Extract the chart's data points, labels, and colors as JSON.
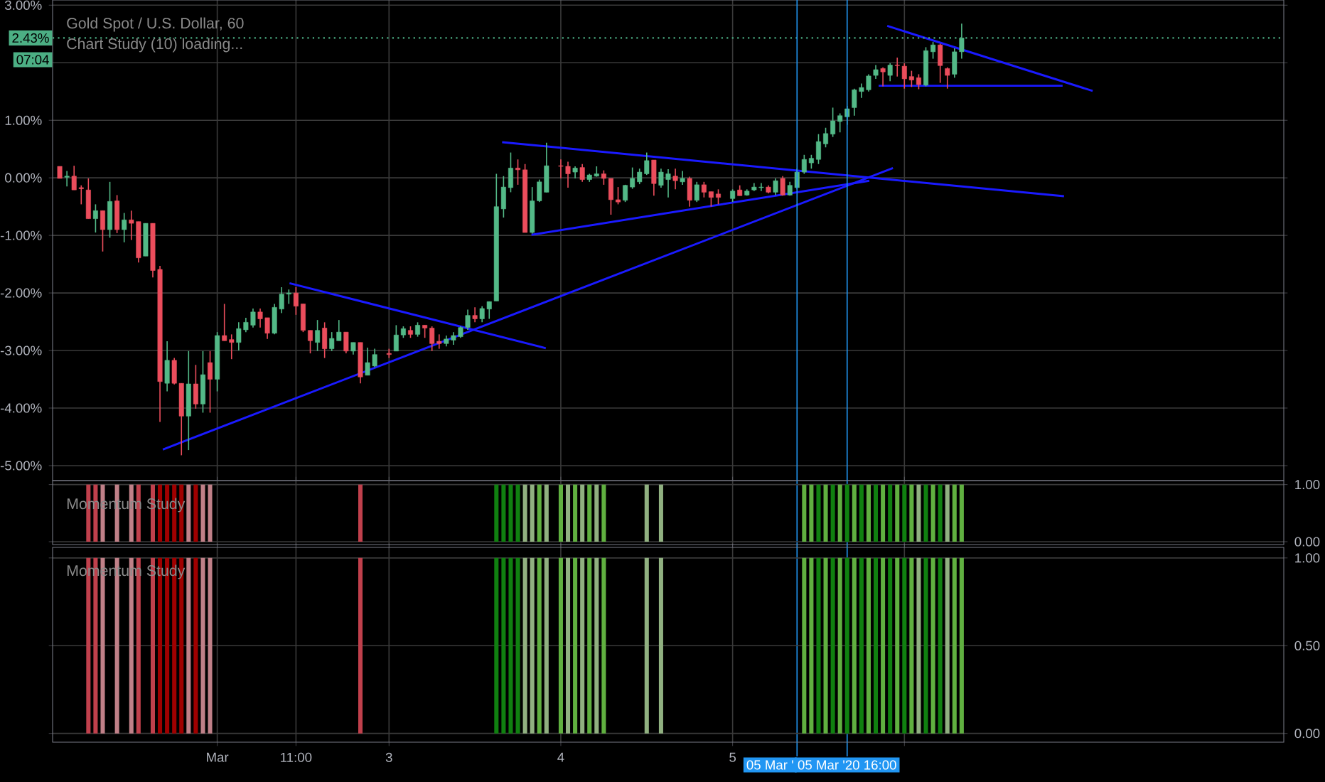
{
  "chart_data": [
    {
      "type": "candlestick",
      "title": "Gold Spot / U.S. Dollar, 60",
      "subtitle": "Chart Study (10) loading...",
      "annotations": [
        "07:04"
      ],
      "x": [
        "2020-03-01T02:00",
        "2020-03-01T03:00",
        "2020-03-01T04:00",
        "2020-03-01T05:00",
        "2020-03-01T06:00",
        "2020-03-01T07:00",
        "2020-03-01T08:00",
        "2020-03-01T09:00",
        "2020-03-01T10:00",
        "2020-03-01T11:00",
        "2020-03-01T12:00",
        "2020-03-01T13:00",
        "2020-03-01T14:00",
        "2020-03-01T15:00",
        "2020-03-01T16:00",
        "2020-03-01T17:00",
        "2020-03-01T18:00",
        "2020-03-01T19:00",
        "2020-03-01T20:00",
        "2020-03-01T21:00",
        "2020-03-01T22:00",
        "2020-03-01T23:00",
        "2020-03-02T00:00",
        "2020-03-02T01:00",
        "2020-03-02T02:00",
        "2020-03-02T03:00",
        "2020-03-02T04:00",
        "2020-03-02T05:00",
        "2020-03-02T06:00",
        "2020-03-02T07:00",
        "2020-03-02T08:00",
        "2020-03-02T09:00",
        "2020-03-02T10:00",
        "2020-03-02T11:00",
        "2020-03-02T12:00",
        "2020-03-02T13:00",
        "2020-03-02T14:00",
        "2020-03-02T15:00",
        "2020-03-02T16:00",
        "2020-03-02T17:00",
        "2020-03-02T18:00",
        "2020-03-02T19:00",
        "2020-03-02T20:00",
        "2020-03-02T21:00",
        "2020-03-02T22:00",
        "2020-03-03T00:00",
        "2020-03-03T01:00",
        "2020-03-03T02:00",
        "2020-03-03T03:00",
        "2020-03-03T04:00",
        "2020-03-03T05:00",
        "2020-03-03T06:00",
        "2020-03-03T07:00",
        "2020-03-03T08:00",
        "2020-03-03T09:00",
        "2020-03-03T10:00",
        "2020-03-03T11:00",
        "2020-03-03T12:00",
        "2020-03-03T13:00",
        "2020-03-03T14:00",
        "2020-03-03T15:00",
        "2020-03-03T16:00",
        "2020-03-03T17:00",
        "2020-03-03T18:00",
        "2020-03-03T19:00",
        "2020-03-03T20:00",
        "2020-03-03T21:00",
        "2020-03-03T22:00",
        "2020-03-04T00:00",
        "2020-03-04T01:00",
        "2020-03-04T02:00",
        "2020-03-04T03:00",
        "2020-03-04T04:00",
        "2020-03-04T05:00",
        "2020-03-04T06:00",
        "2020-03-04T07:00",
        "2020-03-04T08:00",
        "2020-03-04T09:00",
        "2020-03-04T10:00",
        "2020-03-04T11:00",
        "2020-03-04T12:00",
        "2020-03-04T13:00",
        "2020-03-04T14:00",
        "2020-03-04T15:00",
        "2020-03-04T16:00",
        "2020-03-04T17:00",
        "2020-03-04T18:00",
        "2020-03-04T19:00",
        "2020-03-04T20:00",
        "2020-03-04T21:00",
        "2020-03-04T22:00",
        "2020-03-05T00:00",
        "2020-03-05T01:00",
        "2020-03-05T02:00",
        "2020-03-05T03:00",
        "2020-03-05T04:00",
        "2020-03-05T05:00",
        "2020-03-05T06:00",
        "2020-03-05T07:00",
        "2020-03-05T08:00",
        "2020-03-05T09:00",
        "2020-03-05T10:00",
        "2020-03-05T11:00",
        "2020-03-05T12:00",
        "2020-03-05T13:00",
        "2020-03-05T14:00",
        "2020-03-05T15:00",
        "2020-03-05T16:00",
        "2020-03-05T17:00",
        "2020-03-05T18:00",
        "2020-03-05T19:00",
        "2020-03-05T20:00",
        "2020-03-05T21:00",
        "2020-03-05T22:00",
        "2020-03-05T23:00",
        "2020-03-06T00:00",
        "2020-03-06T01:00",
        "2020-03-06T02:00",
        "2020-03-06T03:00",
        "2020-03-06T04:00",
        "2020-03-06T05:00",
        "2020-03-06T06:00",
        "2020-03-06T07:00",
        "2020-03-06T08:00"
      ],
      "ohlc": [
        [
          0.2,
          0.2,
          -0.01,
          -0.01
        ],
        [
          0.01,
          0.12,
          -0.15,
          0.03
        ],
        [
          0.03,
          0.21,
          -0.21,
          -0.21
        ],
        [
          -0.17,
          -0.13,
          -0.46,
          -0.19
        ],
        [
          -0.21,
          -0.01,
          -0.71,
          -0.71
        ],
        [
          -0.71,
          -0.46,
          -0.95,
          -0.57
        ],
        [
          -0.57,
          -0.57,
          -1.28,
          -0.9
        ],
        [
          -0.9,
          -0.07,
          -1.04,
          -0.41
        ],
        [
          -0.4,
          -0.3,
          -0.96,
          -0.9
        ],
        [
          -0.9,
          -0.61,
          -1.12,
          -0.73
        ],
        [
          -0.73,
          -0.57,
          -1.08,
          -0.79
        ],
        [
          -0.76,
          -0.76,
          -1.47,
          -1.39
        ],
        [
          -1.36,
          -0.79,
          -1.36,
          -0.79
        ],
        [
          -0.79,
          -0.79,
          -1.73,
          -1.61
        ],
        [
          -1.59,
          -1.53,
          -4.24,
          -3.54
        ],
        [
          -3.57,
          -2.84,
          -3.71,
          -3.17
        ],
        [
          -3.17,
          -3.13,
          -3.59,
          -3.57
        ],
        [
          -3.57,
          -3.57,
          -4.82,
          -4.14
        ],
        [
          -4.14,
          -3.01,
          -4.73,
          -3.58
        ],
        [
          -3.58,
          -3.25,
          -4.01,
          -3.93
        ],
        [
          -3.93,
          -3.01,
          -4.08,
          -3.42
        ],
        [
          -3.21,
          -3.01,
          -4.08,
          -3.5
        ],
        [
          -3.5,
          -2.68,
          -3.71,
          -2.74
        ],
        [
          -2.74,
          -2.19,
          -2.83,
          -2.83
        ],
        [
          -2.81,
          -2.72,
          -3.15,
          -2.86
        ],
        [
          -2.86,
          -2.51,
          -3.0,
          -2.62
        ],
        [
          -2.64,
          -2.43,
          -2.68,
          -2.51
        ],
        [
          -2.56,
          -2.27,
          -2.6,
          -2.33
        ],
        [
          -2.33,
          -2.27,
          -2.6,
          -2.45
        ],
        [
          -2.43,
          -2.43,
          -2.8,
          -2.7
        ],
        [
          -2.7,
          -2.19,
          -2.72,
          -2.25
        ],
        [
          -2.28,
          -1.9,
          -2.35,
          -2.02
        ],
        [
          -2.02,
          -1.94,
          -2.19,
          -2.0
        ],
        [
          -2.0,
          -1.9,
          -2.38,
          -2.23
        ],
        [
          -2.19,
          -2.19,
          -2.68,
          -2.65
        ],
        [
          -2.65,
          -2.65,
          -3.05,
          -2.83
        ],
        [
          -2.86,
          -2.47,
          -3.01,
          -2.65
        ],
        [
          -2.61,
          -2.51,
          -3.13,
          -2.97
        ],
        [
          -2.97,
          -2.68,
          -3.01,
          -2.79
        ],
        [
          -2.83,
          -2.47,
          -2.83,
          -2.68
        ],
        [
          -2.68,
          -2.68,
          -3.05,
          -3.01
        ],
        [
          -3.01,
          -2.86,
          -3.07,
          -2.86
        ],
        [
          -2.86,
          -2.86,
          -3.57,
          -3.46
        ],
        [
          -3.43,
          -2.95,
          -3.43,
          -3.21
        ],
        [
          -3.27,
          -2.97,
          -3.29,
          -3.07
        ],
        [
          -3.05,
          -2.97,
          -3.13,
          -3.07
        ],
        [
          -3.01,
          -2.56,
          -3.01,
          -2.73
        ],
        [
          -2.73,
          -2.58,
          -2.78,
          -2.62
        ],
        [
          -2.65,
          -2.58,
          -2.78,
          -2.72
        ],
        [
          -2.72,
          -2.51,
          -2.76,
          -2.56
        ],
        [
          -2.56,
          -2.56,
          -2.78,
          -2.61
        ],
        [
          -2.61,
          -2.58,
          -3.01,
          -2.88
        ],
        [
          -2.84,
          -2.72,
          -2.97,
          -2.88
        ],
        [
          -2.88,
          -2.74,
          -2.93,
          -2.8
        ],
        [
          -2.82,
          -2.68,
          -2.9,
          -2.74
        ],
        [
          -2.76,
          -2.58,
          -2.78,
          -2.6
        ],
        [
          -2.6,
          -2.29,
          -2.64,
          -2.39
        ],
        [
          -2.39,
          -2.25,
          -2.51,
          -2.45
        ],
        [
          -2.45,
          -2.23,
          -2.51,
          -2.27
        ],
        [
          -2.28,
          -2.15,
          -2.45,
          -2.15
        ],
        [
          -2.14,
          0.07,
          -2.14,
          -0.5
        ],
        [
          -0.54,
          0.03,
          -0.69,
          -0.16
        ],
        [
          -0.17,
          0.44,
          -0.25,
          0.17
        ],
        [
          0.17,
          0.32,
          -0.12,
          0.14
        ],
        [
          0.14,
          0.24,
          -0.95,
          -0.95
        ],
        [
          -0.95,
          -0.16,
          -0.97,
          -0.4
        ],
        [
          -0.4,
          -0.03,
          -0.42,
          -0.07
        ],
        [
          -0.25,
          0.61,
          -0.25,
          0.21
        ],
        [
          0.21,
          0.32,
          -0.01,
          0.2
        ],
        [
          0.2,
          0.28,
          -0.17,
          0.07
        ],
        [
          0.1,
          0.2,
          -0.01,
          0.17
        ],
        [
          0.18,
          0.24,
          -0.07,
          -0.03
        ],
        [
          -0.03,
          0.07,
          -0.07,
          0.05
        ],
        [
          0.03,
          0.2,
          0.02,
          0.07
        ],
        [
          0.07,
          0.13,
          -0.12,
          -0.01
        ],
        [
          -0.01,
          -0.01,
          -0.64,
          -0.38
        ],
        [
          -0.38,
          -0.16,
          -0.46,
          -0.42
        ],
        [
          -0.39,
          -0.12,
          -0.42,
          -0.13
        ],
        [
          -0.16,
          0.18,
          -0.19,
          -0.01
        ],
        [
          -0.07,
          0.16,
          -0.11,
          0.1
        ],
        [
          0.07,
          0.44,
          0.05,
          0.3
        ],
        [
          0.31,
          0.31,
          -0.31,
          -0.1
        ],
        [
          -0.13,
          0.16,
          -0.17,
          0.1
        ],
        [
          -0.03,
          0.15,
          -0.34,
          0.07
        ],
        [
          0.03,
          0.16,
          -0.2,
          -0.05
        ],
        [
          -0.07,
          0.12,
          -0.12,
          -0.01
        ],
        [
          -0.01,
          0.02,
          -0.5,
          -0.39
        ],
        [
          -0.39,
          -0.07,
          -0.42,
          -0.12
        ],
        [
          -0.12,
          -0.07,
          -0.34,
          -0.25
        ],
        [
          -0.24,
          -0.24,
          -0.5,
          -0.34
        ],
        [
          -0.28,
          -0.2,
          -0.46,
          -0.34
        ],
        [
          -0.36,
          -0.2,
          -0.42,
          -0.23
        ],
        [
          -0.21,
          -0.13,
          -0.31,
          -0.31
        ],
        [
          -0.3,
          -0.2,
          -0.31,
          -0.23
        ],
        [
          -0.21,
          -0.09,
          -0.23,
          -0.16
        ],
        [
          -0.17,
          -0.09,
          -0.23,
          -0.16
        ],
        [
          -0.16,
          -0.13,
          -0.27,
          -0.25
        ],
        [
          -0.25,
          -0.01,
          -0.3,
          -0.05
        ],
        [
          -0.01,
          0.03,
          -0.31,
          -0.3
        ],
        [
          -0.3,
          -0.07,
          -0.31,
          -0.13
        ],
        [
          -0.17,
          0.16,
          -0.2,
          0.1
        ],
        [
          0.1,
          0.4,
          0.07,
          0.32
        ],
        [
          0.26,
          0.4,
          0.16,
          0.34
        ],
        [
          0.32,
          0.76,
          0.24,
          0.63
        ],
        [
          0.59,
          0.87,
          0.53,
          0.77
        ],
        [
          0.76,
          1.22,
          0.71,
          0.99
        ],
        [
          0.98,
          1.12,
          0.79,
          1.08
        ],
        [
          1.06,
          1.25,
          0.92,
          1.2
        ],
        [
          1.22,
          1.55,
          1.08,
          1.53
        ],
        [
          1.5,
          1.64,
          1.39,
          1.57
        ],
        [
          1.53,
          1.8,
          1.5,
          1.77
        ],
        [
          1.78,
          1.96,
          1.72,
          1.88
        ],
        [
          1.9,
          1.92,
          1.59,
          1.84
        ],
        [
          1.78,
          1.99,
          1.68,
          1.96
        ],
        [
          1.96,
          2.09,
          1.76,
          1.95
        ],
        [
          1.94,
          1.99,
          1.55,
          1.72
        ],
        [
          1.76,
          1.86,
          1.58,
          1.7
        ],
        [
          1.74,
          1.8,
          1.54,
          1.62
        ],
        [
          1.61,
          2.27,
          1.59,
          2.21
        ],
        [
          2.19,
          2.36,
          2.07,
          2.31
        ],
        [
          2.31,
          2.33,
          1.65,
          1.95
        ],
        [
          1.9,
          1.92,
          1.55,
          1.78
        ],
        [
          1.8,
          2.25,
          1.74,
          2.19
        ],
        [
          2.19,
          2.68,
          2.07,
          2.43
        ]
      ],
      "colors": [
        "#eb4d5c",
        "#53b987",
        "#eb4d5c",
        "#eb4d5c",
        "#eb4d5c",
        "#53b987",
        "#eb4d5c",
        "#53b987",
        "#eb4d5c",
        "#53b987",
        "#eb4d5c",
        "#eb4d5c",
        "#53b987",
        "#eb4d5c",
        "#eb4d5c",
        "#53b987",
        "#eb4d5c",
        "#eb4d5c",
        "#53b987",
        "#eb4d5c",
        "#53b987",
        "#eb4d5c",
        "#53b987",
        "#eb4d5c",
        "#eb4d5c",
        "#53b987",
        "#53b987",
        "#53b987",
        "#eb4d5c",
        "#eb4d5c",
        "#53b987",
        "#53b987",
        "#53b987",
        "#eb4d5c",
        "#eb4d5c",
        "#eb4d5c",
        "#53b987",
        "#eb4d5c",
        "#53b987",
        "#53b987",
        "#eb4d5c",
        "#53b987",
        "#eb4d5c",
        "#53b987",
        "#53b987",
        "#eb4d5c",
        "#53b987",
        "#53b987",
        "#eb4d5c",
        "#53b987",
        "#eb4d5c",
        "#eb4d5c",
        "#eb4d5c",
        "#53b987",
        "#53b987",
        "#53b987",
        "#53b987",
        "#eb4d5c",
        "#53b987",
        "#53b987",
        "#53b987",
        "#53b987",
        "#53b987",
        "#eb4d5c",
        "#eb4d5c",
        "#53b987",
        "#53b987",
        "#53b987",
        "#eb4d5c",
        "#eb4d5c",
        "#53b987",
        "#eb4d5c",
        "#53b987",
        "#53b987",
        "#eb4d5c",
        "#eb4d5c",
        "#eb4d5c",
        "#53b987",
        "#53b987",
        "#53b987",
        "#53b987",
        "#eb4d5c",
        "#53b987",
        "#53b987",
        "#eb4d5c",
        "#53b987",
        "#eb4d5c",
        "#53b987",
        "#eb4d5c",
        "#eb4d5c",
        "#eb4d5c",
        "#53b987",
        "#eb4d5c",
        "#53b987",
        "#53b987",
        "#53b987",
        "#eb4d5c",
        "#53b987",
        "#eb4d5c",
        "#53b987",
        "#53b987",
        "#53b987",
        "#53b987",
        "#53b987",
        "#53b987",
        "#53b987",
        "#53b987",
        "#53b987",
        "#53b987",
        "#53b987",
        "#53b987",
        "#53b987",
        "#eb4d5c",
        "#53b987",
        "#eb4d5c",
        "#eb4d5c",
        "#eb4d5c",
        "#eb4d5c",
        "#53b987",
        "#53b987",
        "#eb4d5c",
        "#eb4d5c",
        "#53b987",
        "#53b987"
      ],
      "series": [
        {
          "type": "line",
          "color": "#1a1aff",
          "x": [
            "2020-03-01T16:24",
            "2020-03-05T22:24"
          ],
          "values": [
            -4.72,
            0.17
          ]
        },
        {
          "type": "line",
          "color": "#1a1aff",
          "x": [
            "2020-03-02T10:06",
            "2020-03-03T21:54"
          ],
          "values": [
            -1.83,
            -2.96
          ]
        },
        {
          "type": "line",
          "color": "#1a1aff",
          "x": [
            "2020-03-03T15:48",
            "2020-03-06T22:18"
          ],
          "values": [
            0.62,
            -0.32
          ]
        },
        {
          "type": "line",
          "color": "#1a1aff",
          "x": [
            "2020-03-03T19:54",
            "2020-03-05T19:06"
          ],
          "values": [
            -0.99,
            -0.05
          ]
        },
        {
          "type": "line",
          "color": "#1a1aff",
          "x": [
            "2020-03-05T21:36",
            "2020-03-07T02:18"
          ],
          "values": [
            2.64,
            1.51
          ]
        },
        {
          "type": "line",
          "color": "#1a1aff",
          "x": [
            "2020-03-05T20:24",
            "2020-03-06T22:06"
          ],
          "values": [
            1.6,
            1.6
          ]
        }
      ],
      "ref_lines": [
        {
          "axis": "y",
          "value": 2.43,
          "label": "2.43%",
          "color": "#4caf84",
          "line_style": "dotted"
        },
        {
          "axis": "x",
          "value": "2020-03-05T09:00",
          "label": "05 Mar '",
          "color": "#2196f3"
        },
        {
          "axis": "x",
          "value": "2020-03-05T16:00",
          "label": "05 Mar '20  16:00",
          "color": "#2196f3"
        }
      ],
      "xlim": [
        "2020-03-01T01:00",
        "2020-03-08T05:00"
      ],
      "ylim": [
        -5.26,
        3.09
      ],
      "xticks": [
        {
          "value": "2020-03-02",
          "label": null
        },
        {
          "value": "2020-03-02T11:00",
          "label": null
        },
        {
          "value": "2020-03-03",
          "label": null
        },
        {
          "value": "2020-03-04",
          "label": null
        },
        {
          "value": "2020-03-05",
          "label": null
        },
        {
          "value": "2020-03-06",
          "label": null
        }
      ],
      "yticks": [
        {
          "value": 3,
          "label": "3.00%"
        },
        {
          "value": 2,
          "label": null
        },
        {
          "value": 1,
          "label": "1.00%"
        },
        {
          "value": 0,
          "label": "0.00%"
        },
        {
          "value": -1,
          "label": "-1.00%"
        },
        {
          "value": -2,
          "label": "-2.00%"
        },
        {
          "value": -3,
          "label": "-3.00%"
        },
        {
          "value": -4,
          "label": "-4.00%"
        },
        {
          "value": -5,
          "label": "-5.00%"
        }
      ],
      "tick_labels": "y",
      "grid": true
    },
    {
      "type": "bar",
      "title": "Momentum Study",
      "x": [
        "2020-03-01T06:00",
        "2020-03-01T07:00",
        "2020-03-01T08:00",
        "2020-03-01T10:00",
        "2020-03-01T12:00",
        "2020-03-01T13:00",
        "2020-03-01T15:00",
        "2020-03-01T16:00",
        "2020-03-01T17:00",
        "2020-03-01T18:00",
        "2020-03-01T19:00",
        "2020-03-01T20:00",
        "2020-03-01T21:00",
        "2020-03-01T22:00",
        "2020-03-01T23:00",
        "2020-03-02T20:00",
        "2020-03-03T15:00",
        "2020-03-03T16:00",
        "2020-03-03T17:00",
        "2020-03-03T18:00",
        "2020-03-03T19:00",
        "2020-03-03T20:00",
        "2020-03-03T21:00",
        "2020-03-03T22:00",
        "2020-03-04T00:00",
        "2020-03-04T01:00",
        "2020-03-04T02:00",
        "2020-03-04T03:00",
        "2020-03-04T04:00",
        "2020-03-04T05:00",
        "2020-03-04T06:00",
        "2020-03-04T12:00",
        "2020-03-04T14:00",
        "2020-03-05T10:00",
        "2020-03-05T11:00",
        "2020-03-05T12:00",
        "2020-03-05T13:00",
        "2020-03-05T14:00",
        "2020-03-05T15:00",
        "2020-03-05T16:00",
        "2020-03-05T17:00",
        "2020-03-05T18:00",
        "2020-03-05T19:00",
        "2020-03-05T20:00",
        "2020-03-05T21:00",
        "2020-03-05T22:00",
        "2020-03-05T23:00",
        "2020-03-06T00:00",
        "2020-03-06T01:00",
        "2020-03-06T02:00",
        "2020-03-06T03:00",
        "2020-03-06T04:00",
        "2020-03-06T05:00",
        "2020-03-06T06:00",
        "2020-03-06T07:00",
        "2020-03-06T08:00"
      ],
      "values": [
        1,
        1,
        1,
        1,
        1,
        1,
        1,
        1,
        1,
        1,
        1,
        1,
        1,
        1,
        1,
        1,
        1,
        1,
        1,
        1,
        1,
        1,
        1,
        1,
        1,
        1,
        1,
        1,
        1,
        1,
        1,
        1,
        1,
        1,
        1,
        1,
        1,
        1,
        1,
        1,
        1,
        1,
        1,
        1,
        1,
        1,
        1,
        1,
        1,
        1,
        1,
        1,
        1,
        1,
        1,
        1
      ],
      "colors": [
        "#c0404c",
        "#c0404c",
        "#c08088",
        "#c08088",
        "#c08088",
        "#c0404c",
        "#c0404c",
        "#a00000",
        "#a00000",
        "#a00000",
        "#a00000",
        "#c08088",
        "#a00000",
        "#c08088",
        "#c08088",
        "#c0404c",
        "#108010",
        "#108010",
        "#108010",
        "#108010",
        "#90b080",
        "#90b080",
        "#60b040",
        "#90b080",
        "#60b040",
        "#90b080",
        "#60b040",
        "#90b080",
        "#60b040",
        "#90b080",
        "#60b040",
        "#90b080",
        "#90b080",
        "#60b040",
        "#60b040",
        "#108010",
        "#60b040",
        "#108010",
        "#60b040",
        "#108010",
        "#60b040",
        "#108010",
        "#60b040",
        "#108010",
        "#60b040",
        "#108010",
        "#60b040",
        "#108010",
        "#60b040",
        "#90b080",
        "#108010",
        "#60b040",
        "#108010",
        "#90b080",
        "#60b040",
        "#60b040"
      ],
      "xlim": [
        "2020-03-01T01:00",
        "2020-03-08T05:00"
      ],
      "ylim": [
        -0.05,
        1.07
      ],
      "xticks": [
        {
          "value": "2020-03-02",
          "label": null
        },
        {
          "value": "2020-03-02T11:00",
          "label": null
        },
        {
          "value": "2020-03-03",
          "label": null
        },
        {
          "value": "2020-03-04",
          "label": null
        },
        {
          "value": "2020-03-05",
          "label": null
        },
        {
          "value": "2020-03-06",
          "label": null
        }
      ],
      "yticks": [
        {
          "value": 0,
          "label": "0.00"
        },
        {
          "value": 1,
          "label": "1.00"
        }
      ],
      "tick_labels": "y",
      "grid": true
    },
    {
      "type": "bar",
      "title": "Momentum Study",
      "x": [
        "2020-03-01T06:00",
        "2020-03-01T07:00",
        "2020-03-01T08:00",
        "2020-03-01T10:00",
        "2020-03-01T12:00",
        "2020-03-01T13:00",
        "2020-03-01T15:00",
        "2020-03-01T16:00",
        "2020-03-01T17:00",
        "2020-03-01T18:00",
        "2020-03-01T19:00",
        "2020-03-01T20:00",
        "2020-03-01T21:00",
        "2020-03-01T22:00",
        "2020-03-01T23:00",
        "2020-03-02T20:00",
        "2020-03-03T15:00",
        "2020-03-03T16:00",
        "2020-03-03T17:00",
        "2020-03-03T18:00",
        "2020-03-03T19:00",
        "2020-03-03T20:00",
        "2020-03-03T21:00",
        "2020-03-03T22:00",
        "2020-03-04T00:00",
        "2020-03-04T01:00",
        "2020-03-04T02:00",
        "2020-03-04T03:00",
        "2020-03-04T04:00",
        "2020-03-04T05:00",
        "2020-03-04T06:00",
        "2020-03-04T12:00",
        "2020-03-04T14:00",
        "2020-03-05T10:00",
        "2020-03-05T11:00",
        "2020-03-05T12:00",
        "2020-03-05T13:00",
        "2020-03-05T14:00",
        "2020-03-05T15:00",
        "2020-03-05T16:00",
        "2020-03-05T17:00",
        "2020-03-05T18:00",
        "2020-03-05T19:00",
        "2020-03-05T20:00",
        "2020-03-05T21:00",
        "2020-03-05T22:00",
        "2020-03-05T23:00",
        "2020-03-06T00:00",
        "2020-03-06T01:00",
        "2020-03-06T02:00",
        "2020-03-06T03:00",
        "2020-03-06T04:00",
        "2020-03-06T05:00",
        "2020-03-06T06:00",
        "2020-03-06T07:00",
        "2020-03-06T08:00"
      ],
      "values": [
        1,
        1,
        1,
        1,
        1,
        1,
        1,
        1,
        1,
        1,
        1,
        1,
        1,
        1,
        1,
        1,
        1,
        1,
        1,
        1,
        1,
        1,
        1,
        1,
        1,
        1,
        1,
        1,
        1,
        1,
        1,
        1,
        1,
        1,
        1,
        1,
        1,
        1,
        1,
        1,
        1,
        1,
        1,
        1,
        1,
        1,
        1,
        1,
        1,
        1,
        1,
        1,
        1,
        1,
        1,
        1
      ],
      "colors": [
        "#c0404c",
        "#c0404c",
        "#c08088",
        "#c08088",
        "#c08088",
        "#c0404c",
        "#c0404c",
        "#a00000",
        "#a00000",
        "#a00000",
        "#a00000",
        "#c08088",
        "#a00000",
        "#c08088",
        "#c08088",
        "#c0404c",
        "#108010",
        "#108010",
        "#108010",
        "#108010",
        "#90b080",
        "#90b080",
        "#60b040",
        "#90b080",
        "#60b040",
        "#90b080",
        "#60b040",
        "#90b080",
        "#60b040",
        "#90b080",
        "#60b040",
        "#90b080",
        "#90b080",
        "#60b040",
        "#60b040",
        "#108010",
        "#60b040",
        "#108010",
        "#60b040",
        "#108010",
        "#60b040",
        "#108010",
        "#60b040",
        "#108010",
        "#60b040",
        "#108010",
        "#60b040",
        "#108010",
        "#60b040",
        "#90b080",
        "#108010",
        "#60b040",
        "#108010",
        "#90b080",
        "#60b040",
        "#60b040"
      ],
      "xlim": [
        "2020-03-01T01:00",
        "2020-03-08T05:00"
      ],
      "ylim": [
        -0.05,
        1.06
      ],
      "xticks": [
        {
          "value": "2020-03-02",
          "label": "Mar"
        },
        {
          "value": "2020-03-02T11:00",
          "label": "11:00"
        },
        {
          "value": "2020-03-03",
          "label": "3"
        },
        {
          "value": "2020-03-04",
          "label": "4"
        },
        {
          "value": "2020-03-05",
          "label": "5"
        },
        {
          "value": "2020-03-06",
          "label": null
        }
      ],
      "yticks": [
        {
          "value": 0,
          "label": "0.00"
        },
        {
          "value": 0.5,
          "label": "0.50"
        },
        {
          "value": 1,
          "label": "1.00"
        }
      ],
      "grid": true
    }
  ]
}
